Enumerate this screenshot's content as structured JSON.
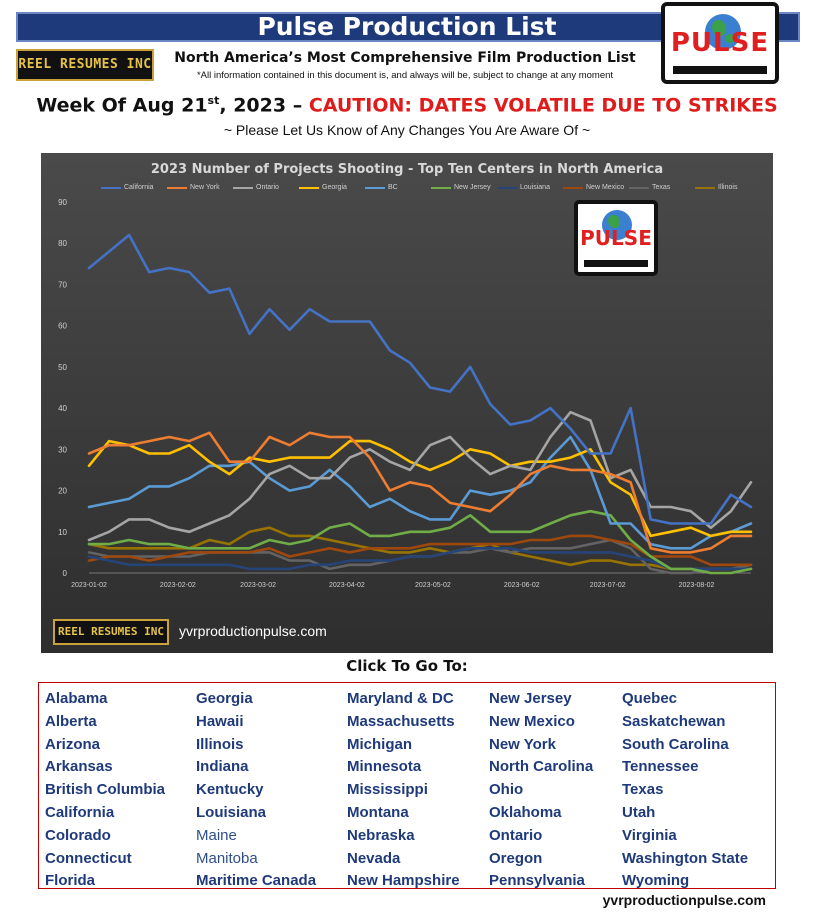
{
  "header": {
    "title": "Pulse Production List",
    "reel_logo": "REEL RESUMES INC",
    "subtitle": "North America’s Most Comprehensive Film Production List",
    "disclaimer": "*All information contained in this document is, and always will be, subject to change at any moment",
    "pulse_logo": "PULSE",
    "week_prefix": "Week Of Aug 21",
    "week_sup": "st",
    "week_suffix": ", 2023 –",
    "caution": "CAUTION: DATES VOLATILE DUE TO STRIKES",
    "please": "~ Please Let Us Know of Any Changes You Are Aware Of ~"
  },
  "chart_footer": {
    "reel_logo": "REEL RESUMES INC",
    "url": "yvrproductionpulse.com",
    "pulse_logo": "PULSE"
  },
  "chart_data": {
    "type": "line",
    "title": "2023 Number of Projects Shooting - Top Ten Centers in North America",
    "xlabel": "",
    "ylabel": "",
    "ylim": [
      0,
      90
    ],
    "yticks": [
      0,
      10,
      20,
      30,
      40,
      50,
      60,
      70,
      80,
      90
    ],
    "xticks": [
      "2023-01-02",
      "2023-02-02",
      "2023-03-02",
      "2023-04-02",
      "2023-05-02",
      "2023-06-02",
      "2023-07-02",
      "2023-08-02"
    ],
    "x": [
      "2023-01-02",
      "2023-01-09",
      "2023-01-16",
      "2023-01-23",
      "2023-01-30",
      "2023-02-06",
      "2023-02-13",
      "2023-02-20",
      "2023-02-27",
      "2023-03-06",
      "2023-03-13",
      "2023-03-20",
      "2023-03-27",
      "2023-04-03",
      "2023-04-10",
      "2023-04-17",
      "2023-04-24",
      "2023-05-01",
      "2023-05-08",
      "2023-05-15",
      "2023-05-22",
      "2023-05-29",
      "2023-06-05",
      "2023-06-12",
      "2023-06-19",
      "2023-06-26",
      "2023-07-03",
      "2023-07-10",
      "2023-07-17",
      "2023-07-24",
      "2023-07-31",
      "2023-08-07",
      "2023-08-14",
      "2023-08-21"
    ],
    "legend_position": "top",
    "grid": false,
    "series": [
      {
        "name": "California",
        "color": "#4472c4",
        "values": [
          74,
          78,
          82,
          73,
          74,
          73,
          68,
          69,
          58,
          64,
          59,
          64,
          61,
          61,
          61,
          54,
          51,
          45,
          44,
          50,
          41,
          36,
          37,
          40,
          35,
          29,
          29,
          40,
          13,
          12,
          12,
          12,
          19,
          16
        ]
      },
      {
        "name": "New York",
        "color": "#ed7d31",
        "values": [
          29,
          31,
          31,
          32,
          33,
          32,
          34,
          27,
          27,
          33,
          31,
          34,
          33,
          33,
          28,
          20,
          22,
          21,
          17,
          16,
          15,
          19,
          24,
          26,
          25,
          25,
          24,
          22,
          6,
          5,
          5,
          6,
          9,
          9
        ]
      },
      {
        "name": "Ontario",
        "color": "#a5a5a5",
        "values": [
          8,
          10,
          13,
          13,
          11,
          10,
          12,
          14,
          18,
          24,
          26,
          23,
          23,
          28,
          30,
          27,
          25,
          31,
          33,
          28,
          24,
          26,
          25,
          33,
          39,
          37,
          23,
          25,
          16,
          16,
          15,
          11,
          15,
          22
        ]
      },
      {
        "name": "Georgia",
        "color": "#ffc000",
        "values": [
          26,
          32,
          31,
          29,
          29,
          31,
          27,
          24,
          28,
          27,
          28,
          28,
          28,
          32,
          32,
          30,
          27,
          25,
          27,
          30,
          29,
          26,
          27,
          27,
          28,
          30,
          22,
          19,
          9,
          10,
          11,
          9,
          10,
          10
        ]
      },
      {
        "name": "BC",
        "color": "#5b9bd5",
        "values": [
          16,
          17,
          18,
          21,
          21,
          23,
          26,
          26,
          27,
          23,
          20,
          21,
          25,
          21,
          16,
          18,
          15,
          13,
          13,
          20,
          19,
          20,
          22,
          28,
          33,
          25,
          12,
          12,
          7,
          6,
          6,
          9,
          10,
          12
        ]
      },
      {
        "name": "New Jersey",
        "color": "#70ad47",
        "values": [
          7,
          7,
          8,
          7,
          7,
          6,
          6,
          6,
          6,
          8,
          7,
          8,
          11,
          12,
          9,
          9,
          10,
          10,
          11,
          14,
          10,
          10,
          10,
          12,
          14,
          15,
          14,
          8,
          4,
          1,
          1,
          0,
          0,
          1
        ]
      },
      {
        "name": "Louisiana",
        "color": "#264478",
        "values": [
          4,
          3,
          2,
          2,
          2,
          2,
          2,
          2,
          1,
          1,
          1,
          2,
          2,
          3,
          3,
          3,
          4,
          4,
          5,
          6,
          6,
          6,
          5,
          5,
          5,
          5,
          5,
          4,
          3,
          1,
          1,
          1,
          1,
          1
        ]
      },
      {
        "name": "New Mexico",
        "color": "#9e480e",
        "values": [
          3,
          4,
          4,
          3,
          4,
          5,
          5,
          5,
          5,
          6,
          4,
          5,
          6,
          5,
          6,
          6,
          6,
          7,
          7,
          7,
          7,
          7,
          8,
          8,
          9,
          9,
          8,
          7,
          4,
          4,
          4,
          2,
          2,
          2
        ]
      },
      {
        "name": "Texas",
        "color": "#636363",
        "values": [
          5,
          4,
          4,
          4,
          4,
          4,
          5,
          5,
          5,
          5,
          3,
          3,
          1,
          2,
          2,
          3,
          4,
          4,
          5,
          5,
          6,
          5,
          6,
          6,
          6,
          7,
          8,
          6,
          1,
          0,
          0,
          1,
          1,
          2
        ]
      },
      {
        "name": "Illinois",
        "color": "#997300",
        "values": [
          7,
          6,
          6,
          6,
          6,
          6,
          8,
          7,
          10,
          11,
          9,
          9,
          8,
          7,
          6,
          5,
          5,
          6,
          5,
          6,
          7,
          5,
          4,
          3,
          2,
          3,
          3,
          2,
          2,
          1,
          1,
          1,
          1,
          1
        ]
      }
    ]
  },
  "links": {
    "heading": "Click To Go To:",
    "columns": [
      [
        "Alabama",
        "Alberta",
        "Arizona",
        "Arkansas",
        "British Columbia",
        "California",
        "Colorado",
        "Connecticut",
        "Florida"
      ],
      [
        "Georgia",
        "Hawaii",
        "Illinois",
        "Indiana",
        "Kentucky",
        "Louisiana",
        "Maine",
        "Manitoba",
        "Maritime Canada"
      ],
      [
        "Maryland & DC",
        "Massachusetts",
        "Michigan",
        "Minnesota",
        "Mississippi",
        "Montana",
        "Nebraska",
        "Nevada",
        "New Hampshire"
      ],
      [
        "New Jersey",
        "New Mexico",
        "New York",
        "North Carolina",
        "Ohio",
        "Oklahoma",
        "Ontario",
        "Oregon",
        "Pennsylvania"
      ],
      [
        "Quebec",
        "Saskatchewan",
        "South Carolina",
        "Tennessee",
        "Texas",
        "Utah",
        "Virginia",
        "Washington State",
        "Wyoming"
      ]
    ]
  },
  "footer": {
    "url": "yvrproductionpulse.com"
  }
}
